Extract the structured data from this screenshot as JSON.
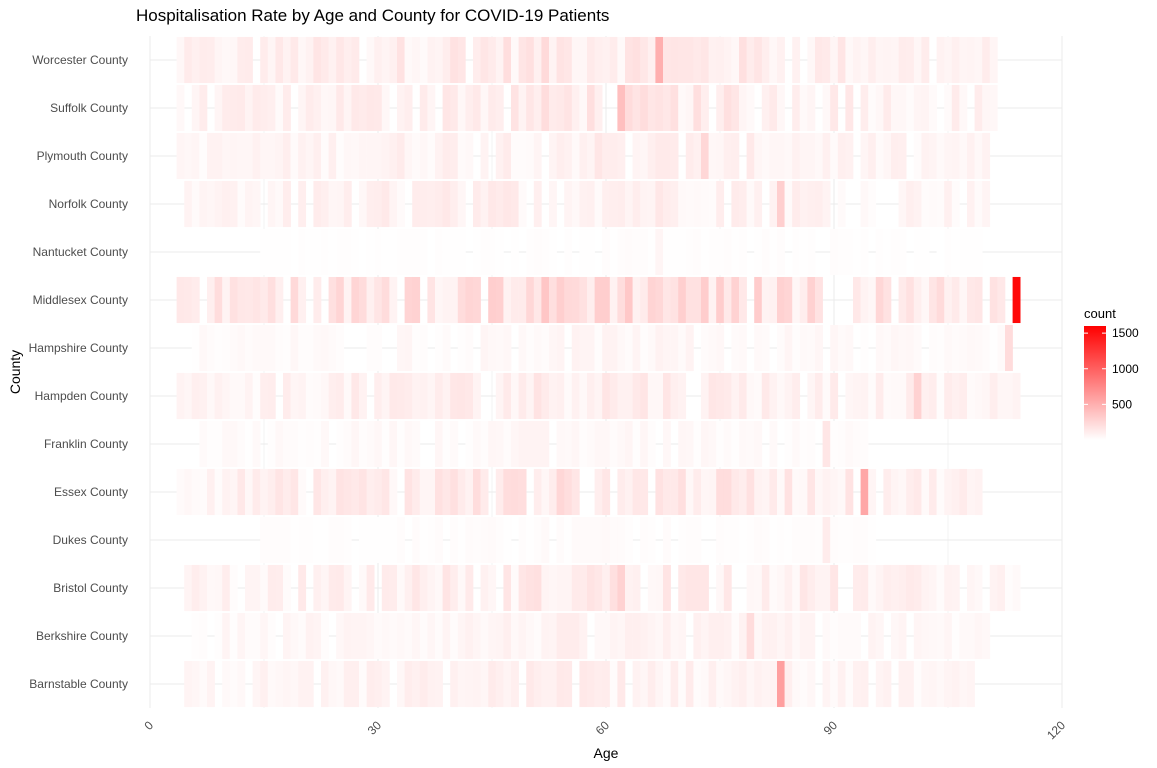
{
  "chart_data": {
    "type": "heatmap",
    "title": "Hospitalisation Rate by Age and County for COVID-19 Patients",
    "xlabel": "Age",
    "ylabel": "County",
    "xlim": [
      0,
      120
    ],
    "x_ticks": [
      0,
      30,
      60,
      90,
      120
    ],
    "counties": [
      "Worcester County",
      "Suffolk County",
      "Plymouth County",
      "Norfolk County",
      "Nantucket County",
      "Middlesex County",
      "Hampshire County",
      "Hampden County",
      "Franklin County",
      "Essex County",
      "Dukes County",
      "Bristol County",
      "Berkshire County",
      "Barnstable County"
    ],
    "county_profiles": [
      {
        "name": "Worcester County",
        "age_range": [
          4,
          111
        ],
        "peak_age": 67,
        "peak_count": 500,
        "typical_count": 160
      },
      {
        "name": "Suffolk County",
        "age_range": [
          4,
          112
        ],
        "peak_age": 62,
        "peak_count": 400,
        "typical_count": 150
      },
      {
        "name": "Plymouth County",
        "age_range": [
          4,
          110
        ],
        "peak_age": 73,
        "peak_count": 250,
        "typical_count": 110
      },
      {
        "name": "Norfolk County",
        "age_range": [
          5,
          110
        ],
        "peak_age": 83,
        "peak_count": 300,
        "typical_count": 120
      },
      {
        "name": "Nantucket County",
        "age_range": [
          15,
          109
        ],
        "peak_age": 67,
        "peak_count": 60,
        "typical_count": 15
      },
      {
        "name": "Middlesex County",
        "age_range": [
          4,
          114
        ],
        "peak_age": 114,
        "peak_count": 1550,
        "typical_count": 260
      },
      {
        "name": "Hampshire County",
        "age_range": [
          6,
          113
        ],
        "peak_age": 113,
        "peak_count": 220,
        "typical_count": 55
      },
      {
        "name": "Hampden County",
        "age_range": [
          4,
          114
        ],
        "peak_age": 101,
        "peak_count": 280,
        "typical_count": 130
      },
      {
        "name": "Franklin County",
        "age_range": [
          7,
          94
        ],
        "peak_age": 89,
        "peak_count": 160,
        "typical_count": 50
      },
      {
        "name": "Essex County",
        "age_range": [
          4,
          109
        ],
        "peak_age": 94,
        "peak_count": 550,
        "typical_count": 170
      },
      {
        "name": "Dukes County",
        "age_range": [
          15,
          96
        ],
        "peak_age": 89,
        "peak_count": 120,
        "typical_count": 25
      },
      {
        "name": "Bristol County",
        "age_range": [
          5,
          114
        ],
        "peak_age": 62,
        "peak_count": 280,
        "typical_count": 140
      },
      {
        "name": "Berkshire County",
        "age_range": [
          6,
          110
        ],
        "peak_age": 79,
        "peak_count": 220,
        "typical_count": 80
      },
      {
        "name": "Barnstable County",
        "age_range": [
          4,
          108
        ],
        "peak_age": 83,
        "peak_count": 600,
        "typical_count": 100
      }
    ],
    "legend": {
      "title": "count",
      "position": "right",
      "breaks": [
        500,
        1000,
        1500
      ],
      "break_labels": [
        "500",
        "1000",
        "1500"
      ],
      "range": [
        0,
        1600
      ],
      "low_color": "#ffffff",
      "high_color": "#ff0000"
    },
    "grid": true
  }
}
